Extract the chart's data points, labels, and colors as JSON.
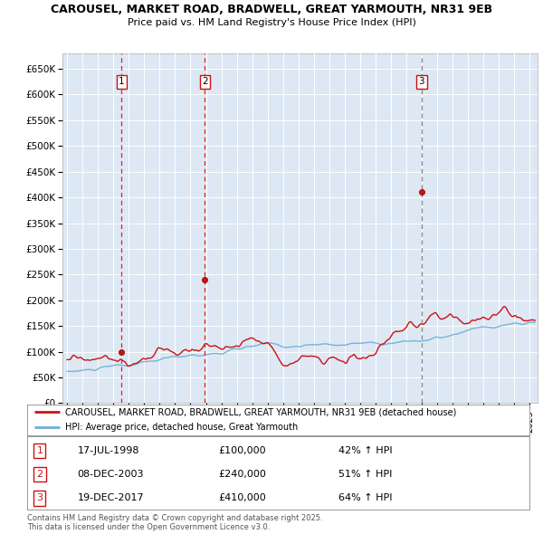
{
  "title_line1": "CAROUSEL, MARKET ROAD, BRADWELL, GREAT YARMOUTH, NR31 9EB",
  "title_line2": "Price paid vs. HM Land Registry's House Price Index (HPI)",
  "legend_line1": "CAROUSEL, MARKET ROAD, BRADWELL, GREAT YARMOUTH, NR31 9EB (detached house)",
  "legend_line2": "HPI: Average price, detached house, Great Yarmouth",
  "footnote": "Contains HM Land Registry data © Crown copyright and database right 2025.\nThis data is licensed under the Open Government Licence v3.0.",
  "sale_dates": [
    1998.54,
    2003.94,
    2017.97
  ],
  "sale_prices": [
    100000,
    240000,
    410000
  ],
  "sale_labels": [
    "1",
    "2",
    "3"
  ],
  "sale_vline_colors": [
    "#dd2222",
    "#dd2222",
    "#888888"
  ],
  "sale_vline_styles": [
    "--",
    "--",
    "--"
  ],
  "sale_annotations": [
    {
      "label": "1",
      "date": "17-JUL-1998",
      "price": "£100,000",
      "hpi": "42% ↑ HPI"
    },
    {
      "label": "2",
      "date": "08-DEC-2003",
      "price": "£240,000",
      "hpi": "51% ↑ HPI"
    },
    {
      "label": "3",
      "date": "19-DEC-2017",
      "price": "£410,000",
      "hpi": "64% ↑ HPI"
    }
  ],
  "hpi_color": "#6aaed6",
  "price_color": "#cc1111",
  "background_color": "#dde8f4",
  "ylim": [
    0,
    680000
  ],
  "xlim_start": 1994.7,
  "xlim_end": 2025.5,
  "yticks": [
    0,
    50000,
    100000,
    150000,
    200000,
    250000,
    300000,
    350000,
    400000,
    450000,
    500000,
    550000,
    600000,
    650000
  ],
  "ytick_labels": [
    "£0",
    "£50K",
    "£100K",
    "£150K",
    "£200K",
    "£250K",
    "£300K",
    "£350K",
    "£400K",
    "£450K",
    "£500K",
    "£550K",
    "£600K",
    "£650K"
  ]
}
